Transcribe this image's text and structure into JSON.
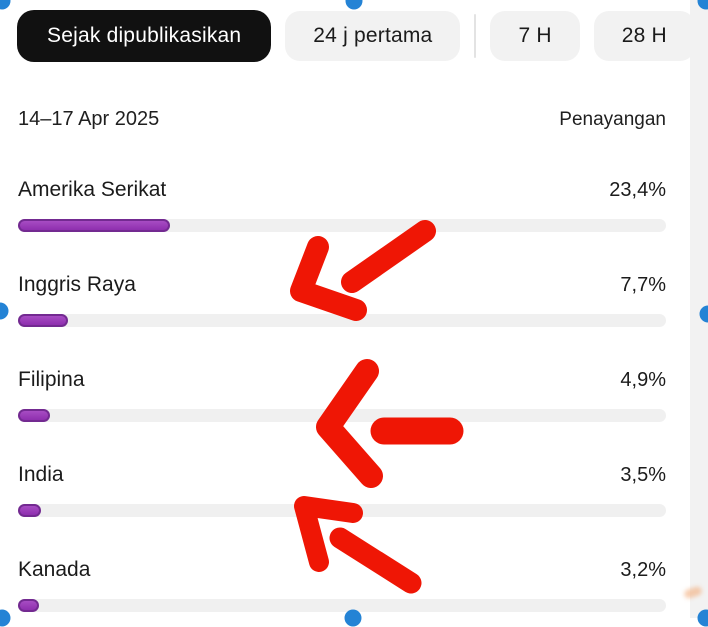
{
  "tabs": [
    {
      "label": "Sejak dipublikasikan",
      "selected": true
    },
    {
      "label": "24 j pertama",
      "selected": false
    },
    {
      "label": "7 H",
      "selected": false
    },
    {
      "label": "28 H",
      "selected": false
    }
  ],
  "header": {
    "date_range": "14–17 Apr 2025",
    "metric_label": "Penayangan"
  },
  "rows": [
    {
      "name": "Amerika Serikat",
      "value": 23.4,
      "display": "23,4%"
    },
    {
      "name": "Inggris Raya",
      "value": 7.7,
      "display": "7,7%"
    },
    {
      "name": "Filipina",
      "value": 4.9,
      "display": "4,9%"
    },
    {
      "name": "India",
      "value": 3.5,
      "display": "3,5%"
    },
    {
      "name": "Kanada",
      "value": 3.2,
      "display": "3,2%"
    }
  ],
  "chart_data": {
    "type": "bar",
    "categories": [
      "Amerika Serikat",
      "Inggris Raya",
      "Filipina",
      "India",
      "Kanada"
    ],
    "values": [
      23.4,
      7.7,
      4.9,
      3.5,
      3.2
    ],
    "value_labels": [
      "23,4%",
      "7,7%",
      "4,9%",
      "3,5%",
      "3,2%"
    ],
    "title": "Penayangan 14–17 Apr 2025",
    "xlabel": "",
    "ylabel": "Penayangan (%)",
    "xlim": [
      0,
      100
    ],
    "orientation": "horizontal",
    "bar_color": "#9638b4"
  },
  "colors": {
    "accent_purple": "#9638b4",
    "accent_purple_dark": "#732a91",
    "bar_track": "#f0f0f0",
    "selected_tab_bg": "#111111",
    "annotation_red": "#ef1605",
    "handle_blue": "#2483d5"
  },
  "annotations": {
    "arrow_count": 3,
    "arrow_meaning": "hand-drawn arrows pointing at Inggris Raya, Filipina and India rows"
  }
}
